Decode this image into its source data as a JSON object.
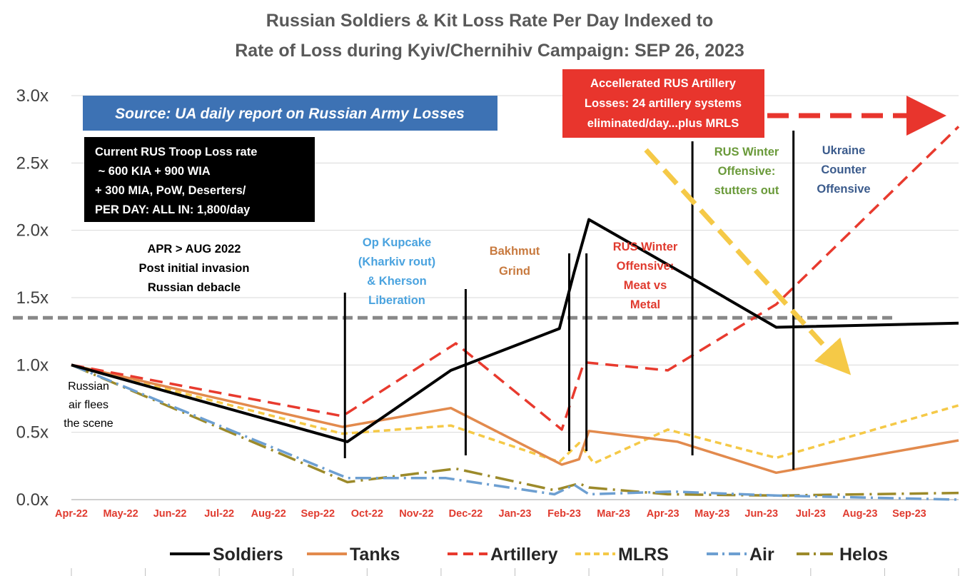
{
  "chart_data": {
    "type": "line",
    "title": [
      "Russian Soldiers & Kit Loss Rate Per Day Indexed to",
      "Rate of Loss during Kyiv/Chernihiv Campaign: SEP 26, 2023"
    ],
    "xlabel": "",
    "ylabel": "",
    "ylim": [
      0,
      3
    ],
    "yticks": [
      "0.0x",
      "0.5x",
      "1.0x",
      "1.5x",
      "2.0x",
      "2.5x",
      "3.0x"
    ],
    "x_range_months": [
      0,
      18
    ],
    "categories": [
      "Apr-22",
      "May-22",
      "Jun-22",
      "Jul-22",
      "Aug-22",
      "Sep-22",
      "Oct-22",
      "Nov-22",
      "Dec-22",
      "Jan-23",
      "Feb-23",
      "Mar-23",
      "Apr-23",
      "May-23",
      "Jun-23",
      "Jul-23",
      "Aug-23",
      "Sep-23"
    ],
    "grid": true,
    "legend_position": "bottom",
    "reference_line": 1.35,
    "series": [
      {
        "name": "Soldiers",
        "color": "#000000",
        "dash": "solid",
        "x": [
          0,
          5.6,
          7.7,
          9.9,
          10.2,
          10.5,
          12.7,
          14.3,
          18
        ],
        "y": [
          1.0,
          0.43,
          0.96,
          1.27,
          1.69,
          2.08,
          1.62,
          1.28,
          1.31
        ]
      },
      {
        "name": "Tanks",
        "color": "#e28a4d",
        "dash": "solid",
        "x": [
          0,
          5.5,
          7.7,
          9.95,
          10.3,
          10.5,
          12.3,
          14.3,
          18
        ],
        "y": [
          1.0,
          0.54,
          0.68,
          0.26,
          0.3,
          0.51,
          0.43,
          0.2,
          0.44
        ]
      },
      {
        "name": "Artillery",
        "color": "#e83a2e",
        "dash": "dashed",
        "x": [
          0,
          5.5,
          7.8,
          9.95,
          10.4,
          12.1,
          14.3,
          18
        ],
        "y": [
          1.0,
          0.62,
          1.16,
          0.52,
          1.02,
          0.96,
          1.45,
          2.77
        ]
      },
      {
        "name": "MLRS",
        "color": "#f5c947",
        "dash": "short-dash",
        "x": [
          0,
          5.5,
          7.7,
          9.9,
          10.3,
          10.6,
          12.1,
          14.3,
          18
        ],
        "y": [
          1.0,
          0.49,
          0.55,
          0.28,
          0.42,
          0.27,
          0.52,
          0.31,
          0.7
        ]
      },
      {
        "name": "Air",
        "color": "#6d9fd1",
        "dash": "dash-dot",
        "x": [
          0,
          5.6,
          7.6,
          9.8,
          10.2,
          10.5,
          12.2,
          14.3,
          18
        ],
        "y": [
          1.0,
          0.16,
          0.16,
          0.04,
          0.11,
          0.04,
          0.06,
          0.03,
          0.0
        ]
      },
      {
        "name": "Helos",
        "color": "#9c8a2a",
        "dash": "long-dash-dot",
        "x": [
          0,
          5.6,
          7.8,
          9.8,
          10.3,
          10.5,
          12.1,
          14.3,
          18
        ],
        "y": [
          1.0,
          0.13,
          0.23,
          0.07,
          0.12,
          0.09,
          0.04,
          0.03,
          0.05
        ]
      }
    ],
    "vertical_markers_x": [
      5.55,
      8.0,
      10.1,
      10.45,
      12.6,
      14.65
    ],
    "annotations": {
      "source": "Source: UA daily report on Russian Army Losses",
      "troop_box": [
        "Current RUS Troop Loss rate",
        " ~ 600 KIA + 900 WIA",
        "+ 300 MIA, PoW, Deserters/",
        "PER DAY: ALL IN: 1,800/day"
      ],
      "artillery_box": [
        "Accellerated RUS Artillery",
        "Losses: 24 artillery systems",
        "eliminated/day...plus MRLS"
      ],
      "apr_aug": [
        "APR > AUG 2022",
        "Post initial invasion",
        "Russian debacle"
      ],
      "russian_air": [
        "Russian",
        "air flees",
        "the scene"
      ],
      "kupcake": [
        "Op Kupcake",
        "(Kharkiv rout)",
        "& Kherson",
        "Liberation"
      ],
      "bakhmut": [
        "Bakhmut",
        "Grind"
      ],
      "rus_winter_meat": [
        "RUS Winter",
        "Offensive:",
        "Meat vs",
        "Metal"
      ],
      "rus_winter_stutters": [
        "RUS Winter",
        "Offensive:",
        "stutters out"
      ],
      "ukraine_counter": [
        "Ukraine",
        "Counter",
        "Offensive"
      ]
    },
    "colors": {
      "source_bg": "#3d72b4",
      "troop_bg": "#000000",
      "artillery_box_bg": "#e8352d",
      "kupcake": "#4aa3df",
      "bakhmut": "#c87a3f",
      "rus_winter_meat": "#e03a2e",
      "rus_winter_stutters": "#6a9a3a",
      "ukraine_counter": "#3b5b8c",
      "reference_line": "#888888"
    }
  }
}
